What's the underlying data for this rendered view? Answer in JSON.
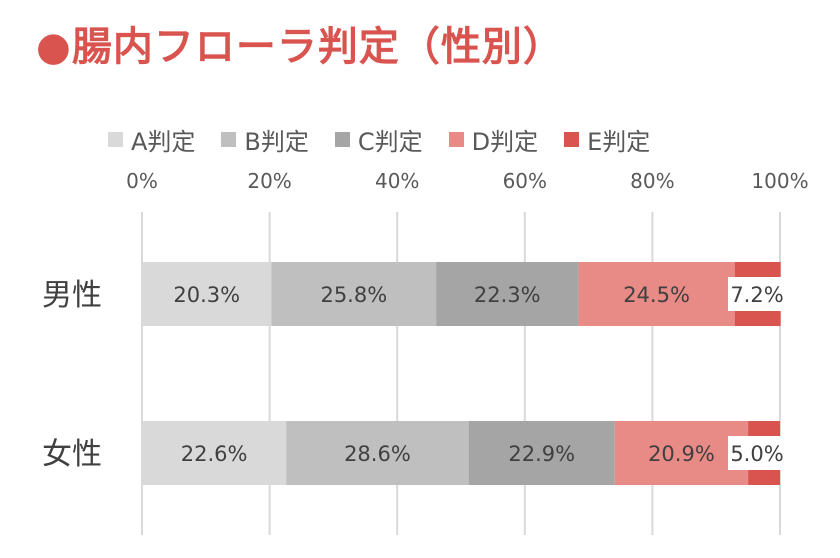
{
  "title": "●腸内フローラ判定（性別）",
  "chart_data": {
    "type": "bar",
    "orientation": "horizontal",
    "stacked": true,
    "percent": true,
    "categories": [
      "男性",
      "女性"
    ],
    "series": [
      {
        "name": "A判定",
        "color": "#d9d9d9",
        "values": [
          20.3,
          22.6
        ]
      },
      {
        "name": "B判定",
        "color": "#bfbfbf",
        "values": [
          25.8,
          28.6
        ]
      },
      {
        "name": "C判定",
        "color": "#a5a5a5",
        "values": [
          22.3,
          22.9
        ]
      },
      {
        "name": "D判定",
        "color": "#e88a85",
        "values": [
          24.5,
          20.9
        ]
      },
      {
        "name": "E判定",
        "color": "#d9534f",
        "values": [
          7.2,
          5.0
        ]
      }
    ],
    "data_labels": [
      [
        "20.3%",
        "25.8%",
        "22.3%",
        "24.5%",
        "7.2%"
      ],
      [
        "22.6%",
        "28.6%",
        "22.9%",
        "20.9%",
        "5.0%"
      ]
    ],
    "x_ticks": [
      "0%",
      "20%",
      "40%",
      "60%",
      "80%",
      "100%"
    ],
    "xlim": [
      0,
      100
    ],
    "x_axis_position": "top",
    "grid": true,
    "legend_position": "top"
  }
}
